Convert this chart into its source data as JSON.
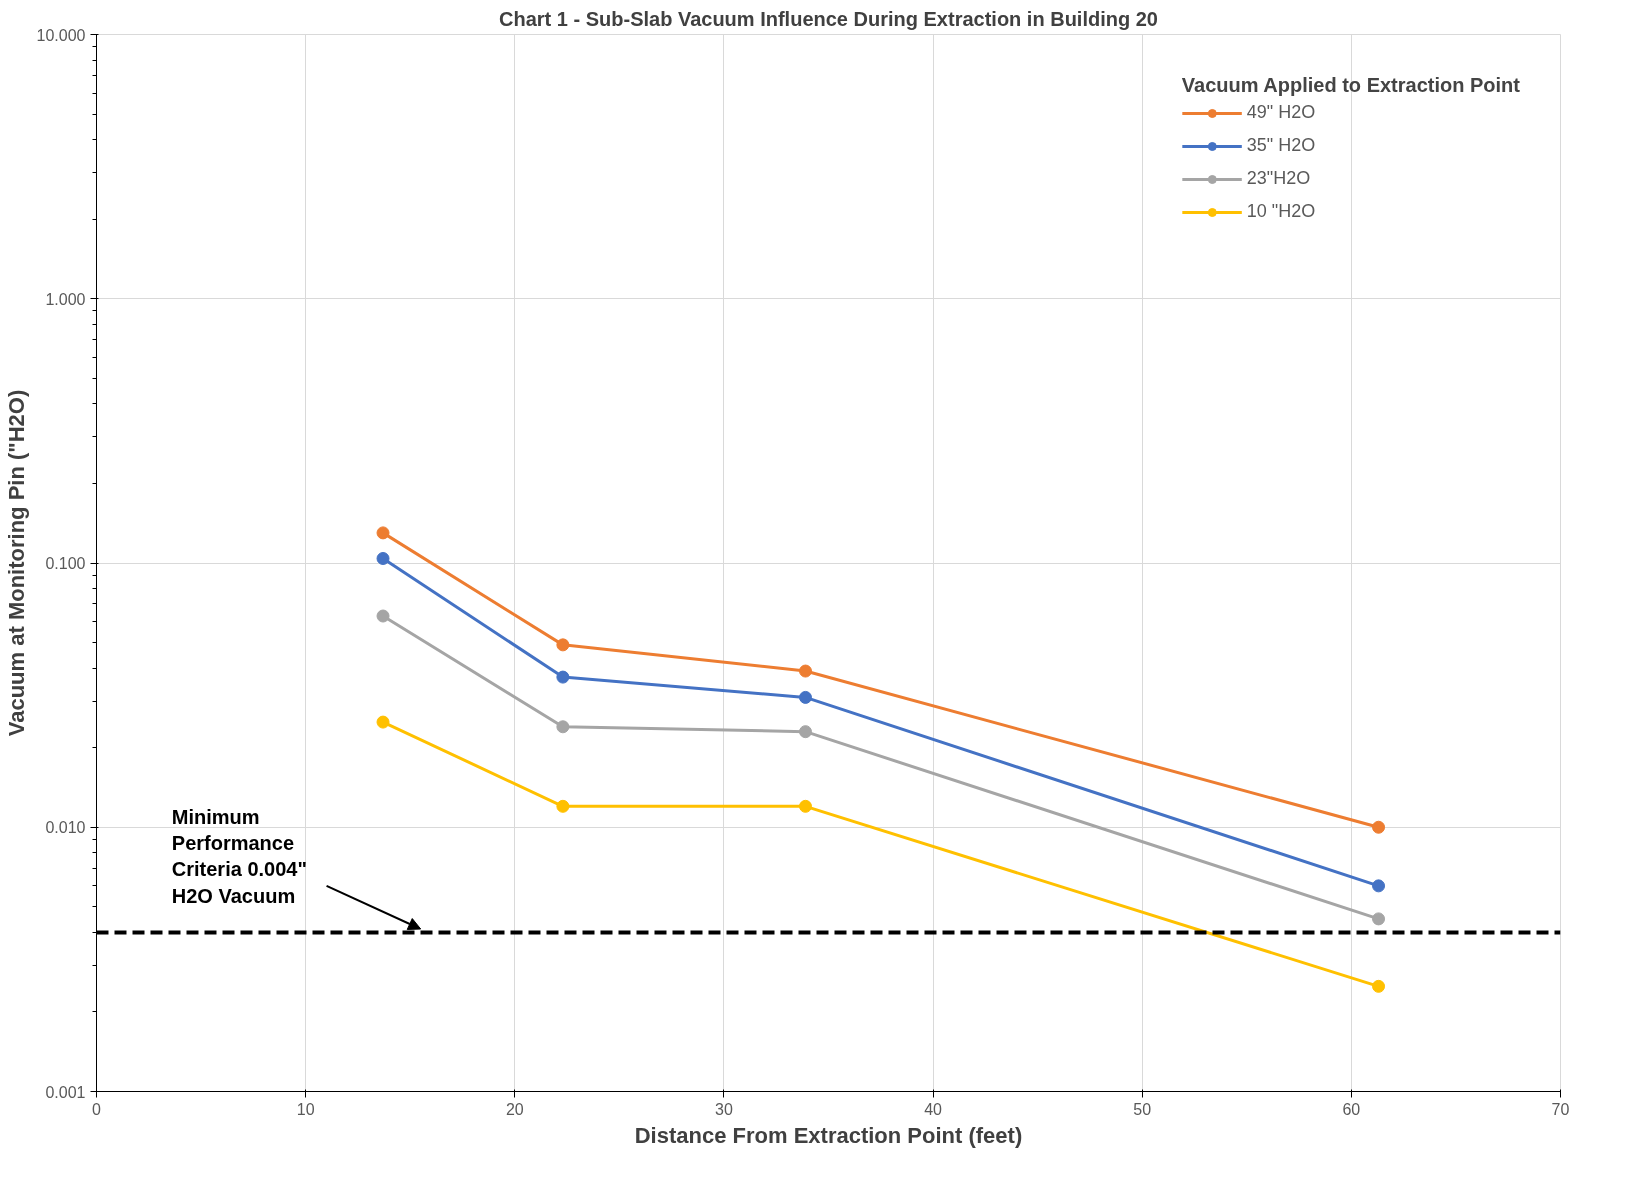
{
  "chart_data": {
    "type": "line",
    "title": "Chart 1 - Sub-Slab Vacuum Influence During Extraction in Building 20",
    "xlabel": "Distance From Extraction Point (feet)",
    "ylabel": "Vacuum at Monitoring Pin (\"H2O)",
    "legend_title": "Vacuum Applied to Extraction Point",
    "x": [
      13.7,
      22.3,
      33.9,
      61.3
    ],
    "series": [
      {
        "name": "49\" H2O",
        "color": "#ed7d31",
        "values": [
          0.13,
          0.049,
          0.039,
          0.01
        ]
      },
      {
        "name": "35\" H2O",
        "color": "#4472c4",
        "values": [
          0.104,
          0.037,
          0.031,
          0.006
        ]
      },
      {
        "name": "23\"H2O",
        "color": "#a5a5a5",
        "values": [
          0.063,
          0.024,
          0.023,
          0.0045
        ]
      },
      {
        "name": "10 \"H2O",
        "color": "#ffc000",
        "values": [
          0.025,
          0.012,
          0.012,
          0.0025
        ]
      }
    ],
    "xlim": [
      0,
      70
    ],
    "xticks": [
      0,
      10,
      20,
      30,
      40,
      50,
      60,
      70
    ],
    "ylim": [
      0.001,
      10
    ],
    "yticks": [
      0.001,
      {
        "value": 0.01,
        "label": "0.010"
      },
      {
        "value": 0.1,
        "label": "0.100"
      },
      {
        "value": 1,
        "label": "1.000"
      },
      {
        "value": 10,
        "label": "10.000"
      }
    ],
    "log": "y",
    "grid": true,
    "legend": "top right",
    "marker": "circle",
    "line_style": "solid",
    "ref_lines": [
      {
        "axis": "y",
        "value": 0.004,
        "label": "Minimum Performance Criteria 0.004\" H2O Vacuum",
        "color": "#000000",
        "line_style": "dashed"
      }
    ]
  }
}
